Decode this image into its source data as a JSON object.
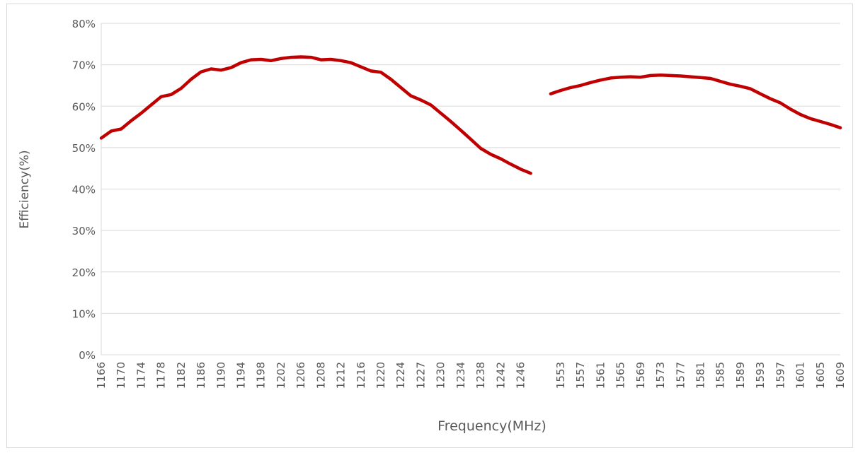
{
  "chart_data": {
    "type": "line",
    "x_label": "Frequency(MHz)",
    "y_label": "Efficiency(%)",
    "categories": [
      "1166",
      null,
      "1170",
      null,
      "1174",
      null,
      "1178",
      null,
      "1182",
      null,
      "1186",
      null,
      "1190",
      null,
      "1194",
      null,
      "1198",
      null,
      "1202",
      null,
      "1206",
      null,
      "1208",
      null,
      "1212",
      null,
      "1216",
      null,
      "1220",
      null,
      "1224",
      null,
      "1227",
      null,
      "1230",
      null,
      "1234",
      null,
      "1238",
      null,
      "1242",
      null,
      "1246",
      null,
      null,
      null,
      "1553",
      null,
      "1557",
      null,
      "1561",
      null,
      "1565",
      null,
      "1569",
      null,
      "1573",
      null,
      "1577",
      null,
      "1581",
      null,
      "1585",
      null,
      "1589",
      null,
      "1593",
      null,
      "1597",
      null,
      "1601",
      null,
      "1605",
      null,
      "1609"
    ],
    "series": [
      {
        "name": "Efficiency",
        "color": "#c00000",
        "values": [
          52.3,
          54,
          54.5,
          56.5,
          58.3,
          60.3,
          62.3,
          62.8,
          64.3,
          66.5,
          68.3,
          69,
          68.7,
          69.3,
          70.5,
          71.2,
          71.3,
          71,
          71.5,
          71.8,
          71.9,
          71.8,
          71.2,
          71.3,
          71,
          70.5,
          69.5,
          68.5,
          68.2,
          66.5,
          64.5,
          62.5,
          61.5,
          60.3,
          58.3,
          56.3,
          54.2,
          52,
          49.8,
          48.4,
          47.3,
          46,
          44.8,
          43.8,
          null,
          63,
          63.8,
          64.5,
          65,
          65.7,
          66.3,
          66.8,
          67,
          67.1,
          67,
          67.4,
          67.5,
          67.4,
          67.3,
          67.1,
          66.9,
          66.7,
          66,
          65.3,
          64.8,
          64.2,
          63,
          61.8,
          60.8,
          59.3,
          58,
          57,
          56.3,
          55.6,
          54.8
        ]
      }
    ],
    "ylim": [
      0,
      80
    ],
    "yticks": [
      {
        "value": 0,
        "label": "0%"
      },
      {
        "value": 10,
        "label": "10%"
      },
      {
        "value": 20,
        "label": "20%"
      },
      {
        "value": 30,
        "label": "30%"
      },
      {
        "value": 40,
        "label": "40%"
      },
      {
        "value": 50,
        "label": "50%"
      },
      {
        "value": 60,
        "label": "60%"
      },
      {
        "value": 70,
        "label": "70%"
      },
      {
        "value": 80,
        "label": "80%"
      }
    ],
    "grid": true
  }
}
